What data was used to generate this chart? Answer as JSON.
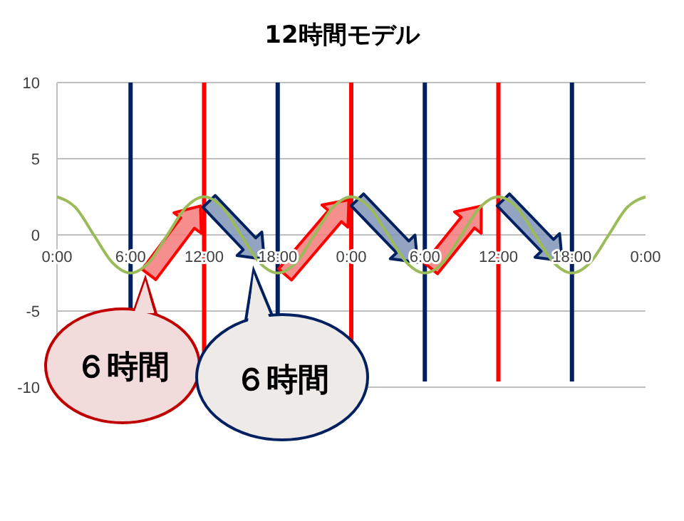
{
  "chart_data": {
    "type": "line",
    "title": "12時間モデル",
    "x": [
      "2000-01-01T00:00",
      "2000-01-01T01:30",
      "2000-01-01T03:00",
      "2000-01-01T04:30",
      "2000-01-01T06:00",
      "2000-01-01T07:30",
      "2000-01-01T09:00",
      "2000-01-01T10:30",
      "2000-01-01T12:00",
      "2000-01-01T13:30",
      "2000-01-01T15:00",
      "2000-01-01T16:30",
      "2000-01-01T18:00",
      "2000-01-01T19:30",
      "2000-01-01T21:00",
      "2000-01-01T22:30",
      "2000-01-02T00:00",
      "2000-01-02T01:30",
      "2000-01-02T03:00",
      "2000-01-02T04:30",
      "2000-01-02T06:00",
      "2000-01-02T07:30",
      "2000-01-02T09:00",
      "2000-01-02T10:30",
      "2000-01-02T12:00",
      "2000-01-02T13:30",
      "2000-01-02T15:00",
      "2000-01-02T16:30",
      "2000-01-02T18:00",
      "2000-01-02T19:30",
      "2000-01-02T21:00",
      "2000-01-02T22:30",
      "2000-01-03T00:00"
    ],
    "series": [
      {
        "color": "#9bbb59",
        "values": [
          2.5,
          1.8,
          0,
          -1.8,
          -2.5,
          -1.8,
          0,
          1.8,
          2.5,
          1.8,
          0,
          -1.8,
          -2.5,
          -1.8,
          0,
          1.8,
          2.5,
          1.8,
          0,
          -1.8,
          -2.5,
          -1.8,
          0,
          1.8,
          2.5,
          1.8,
          0,
          -1.8,
          -2.5,
          -1.8,
          0,
          1.8,
          2.5
        ]
      }
    ],
    "xlim": [
      "2000-01-01T00:00",
      "2000-01-03T00:00"
    ],
    "xticks": [
      {
        "value": "2000-01-01T00:00",
        "label": "0:00"
      },
      {
        "value": "2000-01-01T06:00",
        "label": "6:00"
      },
      {
        "value": "2000-01-01T12:00",
        "label": "12:00"
      },
      {
        "value": "2000-01-01T18:00",
        "label": "18:00"
      },
      {
        "value": "2000-01-02T00:00",
        "label": "0:00"
      },
      {
        "value": "2000-01-02T06:00",
        "label": "6:00"
      },
      {
        "value": "2000-01-02T12:00",
        "label": "12:00"
      },
      {
        "value": "2000-01-02T18:00",
        "label": "18:00"
      },
      {
        "value": "2000-01-03T00:00",
        "label": "0:00"
      }
    ],
    "ylim": [
      -10,
      10
    ],
    "yticks": [
      -10,
      -5,
      0,
      5,
      10
    ],
    "grid": "y",
    "marker": "none",
    "line_style": "solid",
    "ref_lines": [
      {
        "axis": "x",
        "value": "2000-01-01T06:00",
        "color": "#002060"
      },
      {
        "axis": "x",
        "value": "2000-01-01T12:00",
        "color": "#ff0000"
      },
      {
        "axis": "x",
        "value": "2000-01-01T18:00",
        "color": "#002060"
      },
      {
        "axis": "x",
        "value": "2000-01-02T00:00",
        "color": "#ff0000"
      },
      {
        "axis": "x",
        "value": "2000-01-02T06:00",
        "color": "#002060"
      },
      {
        "axis": "x",
        "value": "2000-01-02T12:00",
        "color": "#ff0000"
      },
      {
        "axis": "x",
        "value": "2000-01-02T18:00",
        "color": "#002060"
      }
    ],
    "annotations": [
      "６時間",
      "６時間"
    ]
  }
}
